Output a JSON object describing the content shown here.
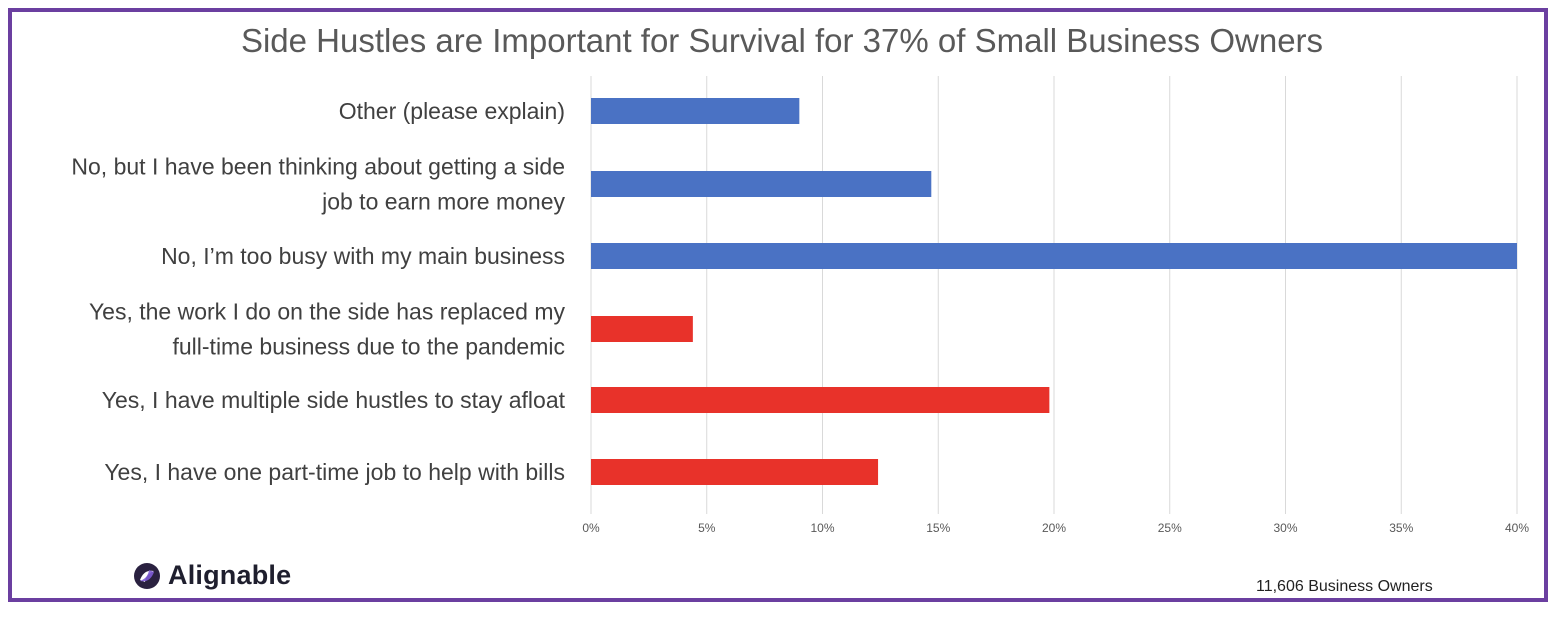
{
  "chart_data": {
    "type": "bar",
    "orientation": "horizontal",
    "title": "Side Hustles are Important for Survival for 37% of Small Business Owners",
    "categories": [
      [
        "Other (please explain)"
      ],
      [
        "No, but I have been thinking about getting a side",
        "job to earn more money"
      ],
      [
        "No, I’m too busy with my main business"
      ],
      [
        "Yes, the work I do on the side has replaced my",
        "full-time business due to the pandemic"
      ],
      [
        "Yes, I have multiple side hustles to stay afloat"
      ],
      [
        "Yes, I have one part-time job to help with bills"
      ]
    ],
    "values": [
      9,
      14.7,
      40,
      4.4,
      19.8,
      12.4
    ],
    "bar_colors": [
      "#4a72c4",
      "#4a72c4",
      "#4a72c4",
      "#e8322a",
      "#e8322a",
      "#e8322a"
    ],
    "xlim": [
      0,
      40
    ],
    "x_ticks": [
      "0%",
      "5%",
      "10%",
      "15%",
      "20%",
      "25%",
      "30%",
      "35%",
      "40%"
    ],
    "grid": true,
    "xlabel": "",
    "ylabel": ""
  },
  "footnote": "11,606 Business Owners",
  "brand": {
    "name": "Alignable",
    "icon": "alignable-logo-icon"
  },
  "colors": {
    "border": "#6b3fa0",
    "blue": "#4a72c4",
    "red": "#e8322a",
    "grid": "#d9d9d9"
  }
}
